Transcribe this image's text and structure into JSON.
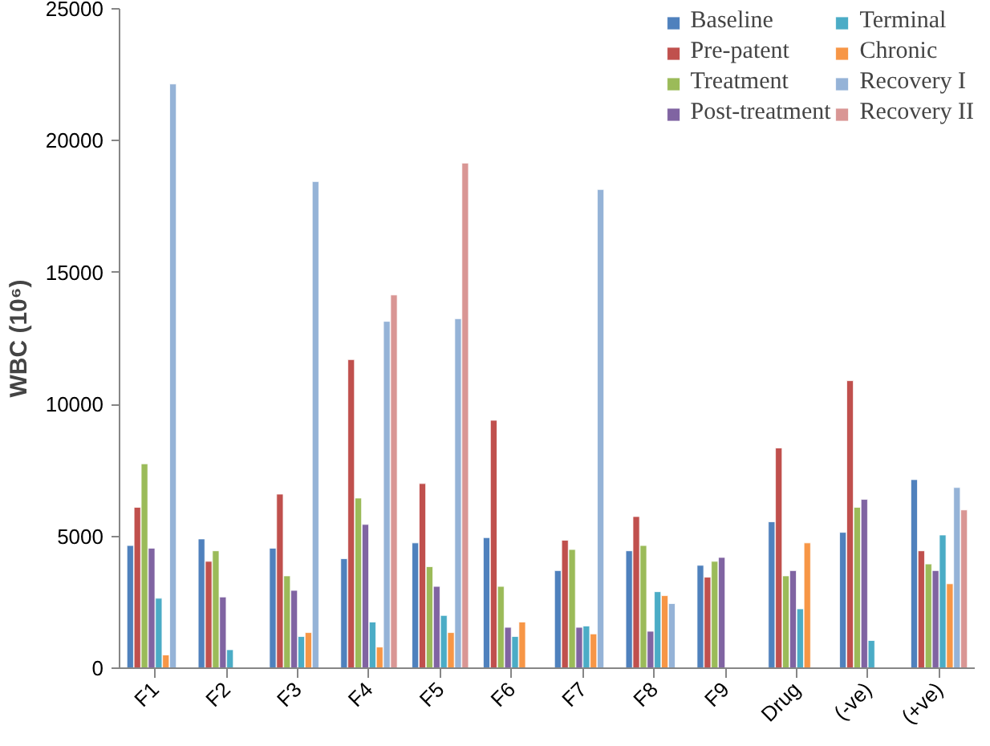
{
  "chart_data": {
    "type": "bar",
    "ylabel": "WBC (10⁶)",
    "categories": [
      "F1",
      "F2",
      "F3",
      "F4",
      "F5",
      "F6",
      "F7",
      "F8",
      "F9",
      "Drug",
      "(-ve)",
      "(+ve)"
    ],
    "series": [
      {
        "name": "Baseline",
        "color": "#4f81bd",
        "values": [
          4650,
          4900,
          4550,
          4150,
          4750,
          4950,
          3700,
          4450,
          3900,
          5550,
          5150,
          7150
        ]
      },
      {
        "name": "Pre-patent",
        "color": "#c0504d",
        "values": [
          6100,
          4050,
          6600,
          11700,
          7000,
          9400,
          4850,
          5750,
          3450,
          8350,
          10900,
          4450
        ]
      },
      {
        "name": "Treatment",
        "color": "#9bbb59",
        "values": [
          7750,
          4450,
          3500,
          6450,
          3850,
          3100,
          4500,
          4650,
          4050,
          3500,
          6100,
          3950
        ]
      },
      {
        "name": "Post-treatment",
        "color": "#8064a2",
        "values": [
          4550,
          2700,
          2950,
          5450,
          3100,
          1550,
          1550,
          1400,
          4200,
          3700,
          6400,
          3700
        ]
      },
      {
        "name": "Terminal",
        "color": "#4bacc6",
        "values": [
          2650,
          700,
          1200,
          1750,
          2000,
          1200,
          1600,
          2900,
          null,
          2250,
          1050,
          5050
        ]
      },
      {
        "name": "Chronic",
        "color": "#f79646",
        "values": [
          500,
          null,
          1350,
          800,
          1350,
          1750,
          1300,
          2750,
          null,
          4750,
          null,
          3200
        ]
      },
      {
        "name": "Recovery I",
        "color": "#95b3d7",
        "values": [
          22150,
          null,
          18450,
          13150,
          13250,
          null,
          18150,
          2450,
          null,
          null,
          null,
          6850
        ]
      },
      {
        "name": "Recovery II",
        "color": "#d99694",
        "values": [
          null,
          null,
          null,
          14150,
          19150,
          null,
          null,
          null,
          null,
          null,
          null,
          6000
        ]
      }
    ],
    "ylim": [
      0,
      25000
    ],
    "yticks": [
      0,
      5000,
      10000,
      15000,
      20000,
      25000
    ],
    "grid": false,
    "legend": "top right"
  }
}
